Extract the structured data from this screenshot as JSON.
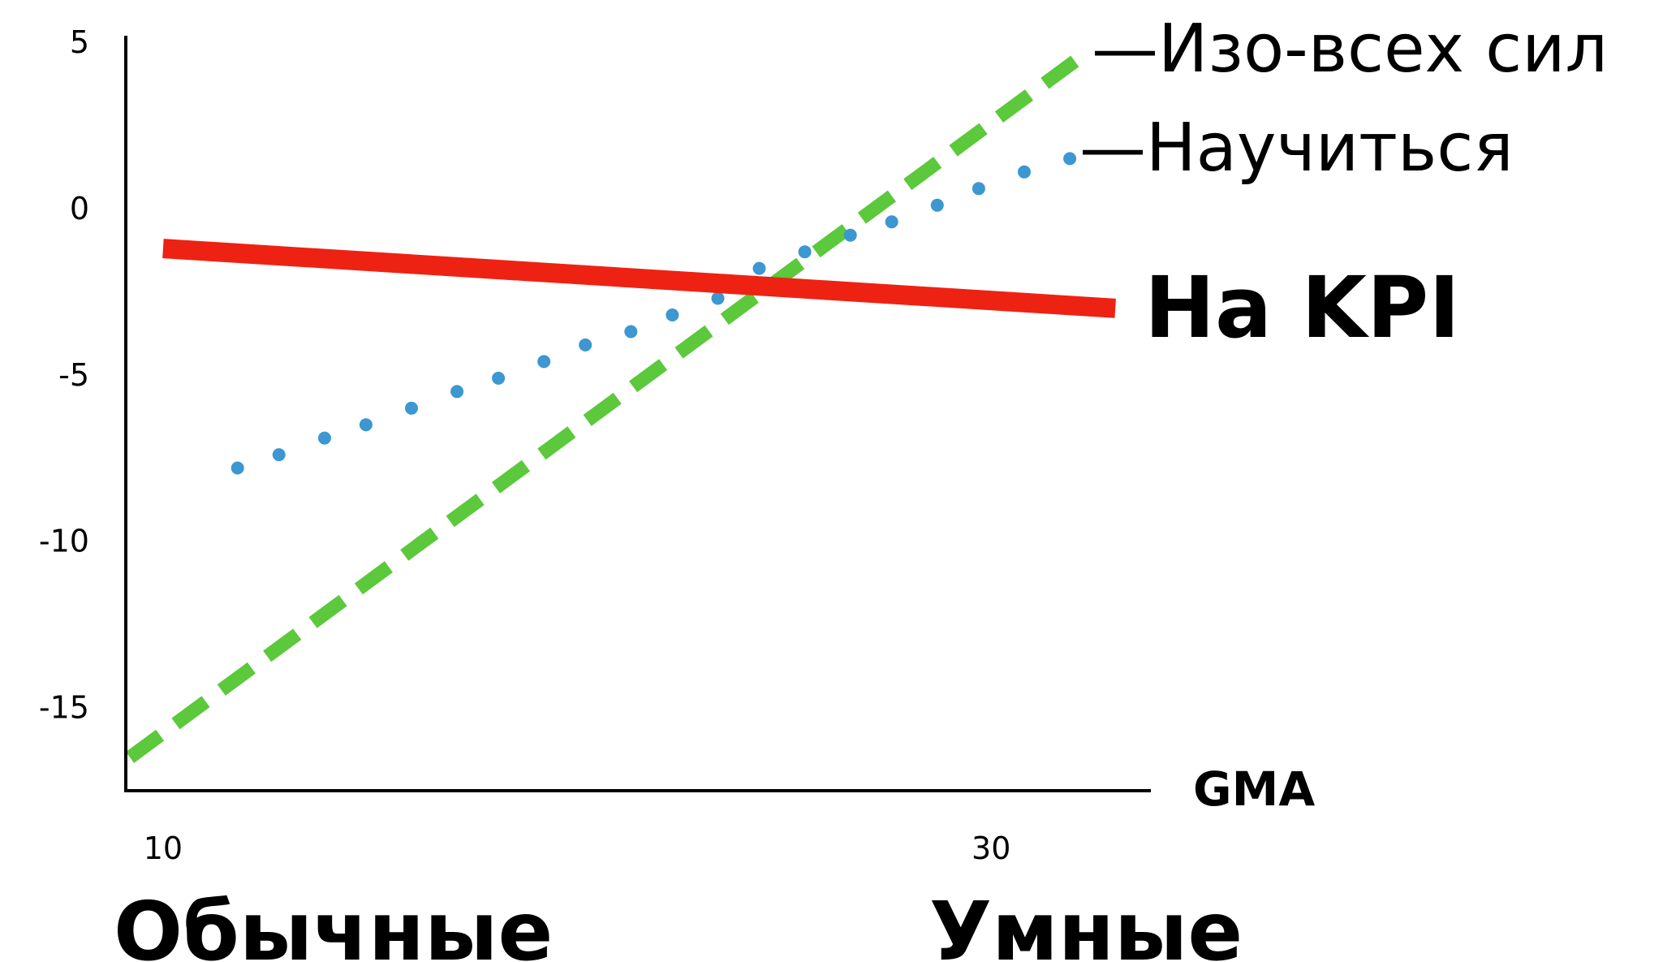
{
  "chart_data": {
    "type": "line",
    "xlabel": "GMA",
    "ylabel": "",
    "xlim": [
      9.1,
      33.8
    ],
    "ylim": [
      -17.5,
      5
    ],
    "x_ticks": [
      "10",
      "30"
    ],
    "y_ticks": [
      "5",
      "0",
      "-5",
      "-10",
      "-15"
    ],
    "x_tick_values": [
      10,
      30
    ],
    "y_tick_values": [
      5,
      0,
      -5,
      -10,
      -15
    ],
    "category_labels": [
      "Обычные",
      "Умные"
    ],
    "category_x": [
      10,
      30
    ],
    "grid": false,
    "legend_dash": "—",
    "series": [
      {
        "name": "Изо-всех сил",
        "style": "dashed",
        "color": "#5cc83c",
        "x": [
          9.2,
          32.1
        ],
        "y": [
          -16.5,
          4.5
        ]
      },
      {
        "name": "Научиться",
        "style": "dotted",
        "color": "#3d97d0",
        "x": [
          11.8,
          12.8,
          13.9,
          14.9,
          16.0,
          17.1,
          18.1,
          19.2,
          20.2,
          21.3,
          22.3,
          23.4,
          24.4,
          25.5,
          26.6,
          27.6,
          28.7,
          29.7,
          30.8,
          31.9
        ],
        "y": [
          -7.8,
          -7.4,
          -6.9,
          -6.5,
          -6.0,
          -5.5,
          -5.1,
          -4.6,
          -4.1,
          -3.7,
          -3.2,
          -2.7,
          -1.8,
          -1.3,
          -0.8,
          -0.4,
          0.1,
          0.6,
          1.1,
          1.5
        ]
      },
      {
        "name": "На KPI",
        "style": "solid",
        "color": "#ee2212",
        "x": [
          10.0,
          33.0
        ],
        "y": [
          -1.2,
          -3.0
        ]
      }
    ]
  }
}
